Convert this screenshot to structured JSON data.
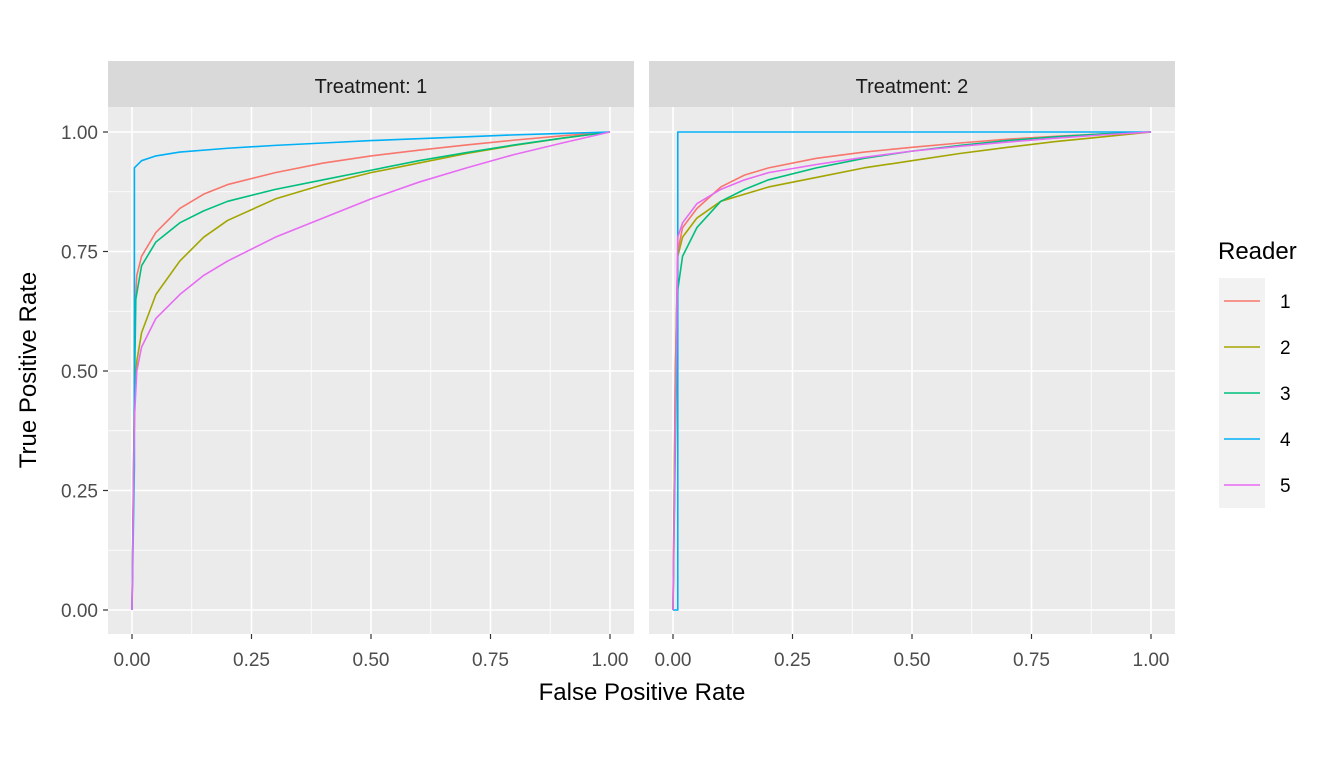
{
  "chart_data": {
    "type": "line",
    "xlabel": "False Positive Rate",
    "ylabel": "True Positive Rate",
    "xlim": [
      0,
      1
    ],
    "ylim": [
      0,
      1
    ],
    "x_ticks": [
      "0.00",
      "0.25",
      "0.50",
      "0.75",
      "1.00"
    ],
    "y_ticks": [
      "0.00",
      "0.25",
      "0.50",
      "0.75",
      "1.00"
    ],
    "grid": true,
    "legend": {
      "title": "Reader",
      "position": "right"
    },
    "panels": [
      {
        "label": "Treatment: 1",
        "series": [
          {
            "name": "1",
            "color": "#F8766D",
            "x": [
              0,
              0.005,
              0.005,
              0.01,
              0.02,
              0.05,
              0.1,
              0.15,
              0.2,
              0.3,
              0.4,
              0.5,
              0.6,
              0.7,
              0.8,
              0.9,
              1.0
            ],
            "y": [
              0,
              0.4,
              0.6,
              0.7,
              0.74,
              0.79,
              0.84,
              0.87,
              0.89,
              0.915,
              0.935,
              0.95,
              0.962,
              0.973,
              0.983,
              0.992,
              1.0
            ]
          },
          {
            "name": "2",
            "color": "#A3A500",
            "x": [
              0,
              0.005,
              0.01,
              0.02,
              0.05,
              0.1,
              0.15,
              0.2,
              0.3,
              0.4,
              0.5,
              0.6,
              0.7,
              0.8,
              0.9,
              1.0
            ],
            "y": [
              0,
              0.45,
              0.52,
              0.58,
              0.66,
              0.73,
              0.78,
              0.815,
              0.86,
              0.89,
              0.915,
              0.935,
              0.955,
              0.972,
              0.987,
              1.0
            ]
          },
          {
            "name": "3",
            "color": "#00BF7D",
            "x": [
              0,
              0.005,
              0.008,
              0.02,
              0.05,
              0.1,
              0.15,
              0.2,
              0.3,
              0.4,
              0.5,
              0.6,
              0.7,
              0.8,
              0.9,
              1.0
            ],
            "y": [
              0,
              0.45,
              0.65,
              0.72,
              0.77,
              0.81,
              0.835,
              0.855,
              0.88,
              0.9,
              0.92,
              0.94,
              0.957,
              0.973,
              0.987,
              1.0
            ]
          },
          {
            "name": "4",
            "color": "#00B0F6",
            "x": [
              0,
              0.005,
              0.005,
              0.01,
              0.02,
              0.05,
              0.1,
              0.2,
              0.3,
              0.4,
              0.5,
              0.6,
              0.7,
              0.8,
              0.9,
              1.0
            ],
            "y": [
              0,
              0.3,
              0.925,
              0.93,
              0.94,
              0.95,
              0.958,
              0.966,
              0.972,
              0.977,
              0.982,
              0.986,
              0.99,
              0.994,
              0.997,
              1.0
            ]
          },
          {
            "name": "5",
            "color": "#E76BF3",
            "x": [
              0,
              0.005,
              0.01,
              0.02,
              0.05,
              0.1,
              0.15,
              0.2,
              0.3,
              0.4,
              0.5,
              0.6,
              0.7,
              0.8,
              0.9,
              1.0
            ],
            "y": [
              0,
              0.4,
              0.5,
              0.55,
              0.61,
              0.66,
              0.7,
              0.73,
              0.78,
              0.82,
              0.86,
              0.895,
              0.925,
              0.953,
              0.977,
              1.0
            ]
          }
        ]
      },
      {
        "label": "Treatment: 2",
        "series": [
          {
            "name": "1",
            "color": "#F8766D",
            "x": [
              0,
              0.005,
              0.01,
              0.02,
              0.05,
              0.1,
              0.15,
              0.2,
              0.3,
              0.4,
              0.5,
              0.6,
              0.7,
              0.8,
              0.9,
              1.0
            ],
            "y": [
              0,
              0.5,
              0.75,
              0.8,
              0.84,
              0.885,
              0.91,
              0.925,
              0.945,
              0.958,
              0.968,
              0.977,
              0.985,
              0.991,
              0.996,
              1.0
            ]
          },
          {
            "name": "2",
            "color": "#A3A500",
            "x": [
              0,
              0.005,
              0.01,
              0.02,
              0.05,
              0.1,
              0.15,
              0.2,
              0.3,
              0.4,
              0.5,
              0.6,
              0.7,
              0.8,
              0.9,
              1.0
            ],
            "y": [
              0,
              0.5,
              0.74,
              0.78,
              0.82,
              0.855,
              0.87,
              0.885,
              0.905,
              0.925,
              0.94,
              0.955,
              0.968,
              0.98,
              0.99,
              1.0
            ]
          },
          {
            "name": "3",
            "color": "#00BF7D",
            "x": [
              0,
              0.005,
              0.01,
              0.02,
              0.05,
              0.1,
              0.15,
              0.2,
              0.3,
              0.4,
              0.5,
              0.6,
              0.7,
              0.8,
              0.9,
              1.0
            ],
            "y": [
              0,
              0.35,
              0.67,
              0.74,
              0.8,
              0.855,
              0.88,
              0.9,
              0.925,
              0.945,
              0.96,
              0.972,
              0.982,
              0.99,
              0.996,
              1.0
            ]
          },
          {
            "name": "4",
            "color": "#00B0F6",
            "x": [
              0,
              0.01,
              0.01,
              1.0
            ],
            "y": [
              0,
              0.0,
              1.0,
              1.0
            ]
          },
          {
            "name": "5",
            "color": "#E76BF3",
            "x": [
              0,
              0.005,
              0.01,
              0.02,
              0.05,
              0.1,
              0.15,
              0.2,
              0.3,
              0.4,
              0.5,
              0.6,
              0.7,
              0.8,
              0.9,
              1.0
            ],
            "y": [
              0,
              0.4,
              0.78,
              0.81,
              0.85,
              0.88,
              0.9,
              0.915,
              0.932,
              0.947,
              0.96,
              0.97,
              0.979,
              0.987,
              0.994,
              1.0
            ]
          }
        ]
      }
    ]
  }
}
